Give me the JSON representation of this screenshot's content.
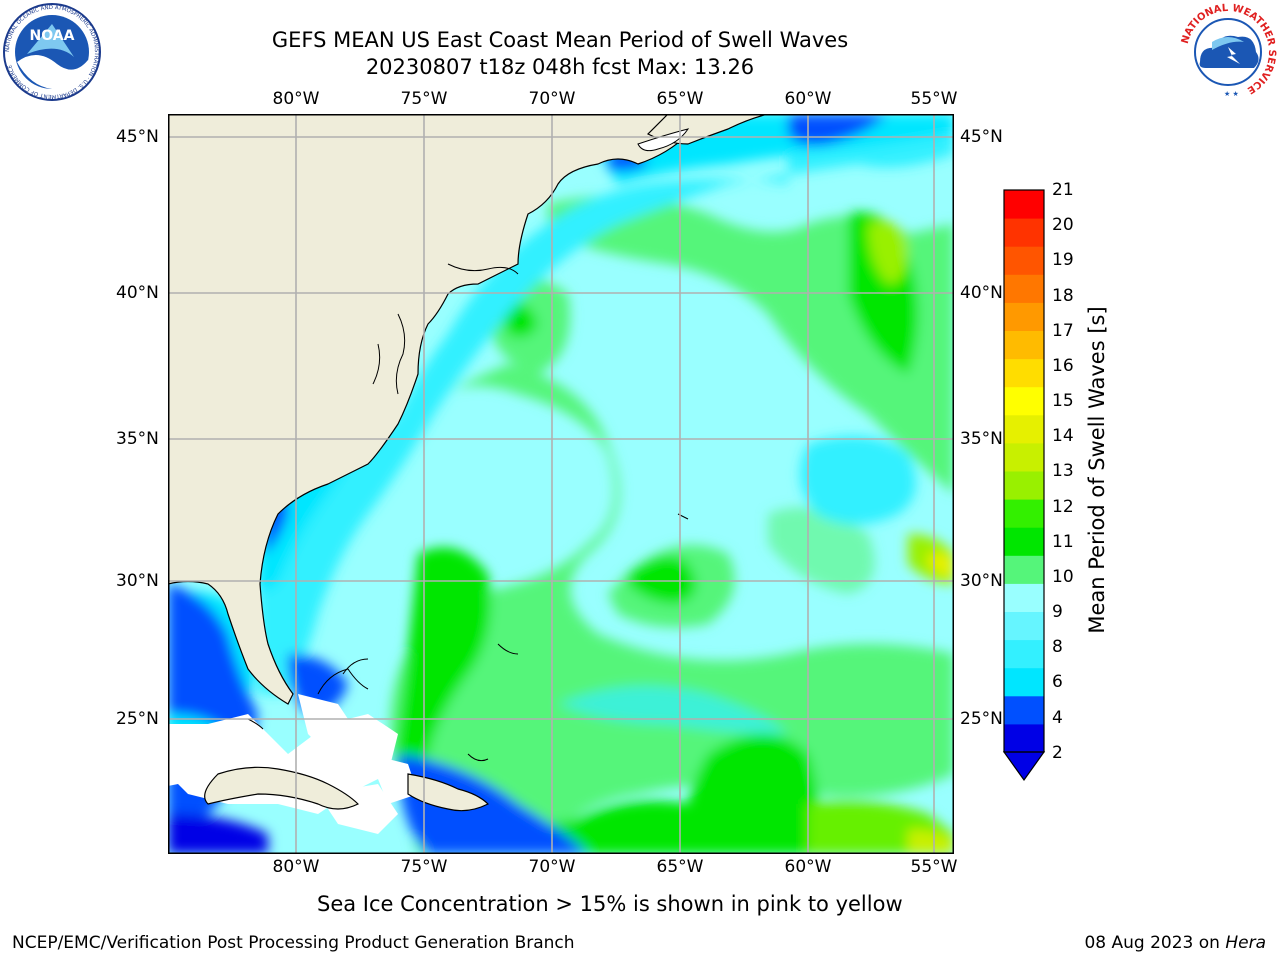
{
  "title": {
    "line1": "GEFS MEAN US East Coast Mean Period of Swell Waves",
    "line2": "20230807 t18z 048h fcst   Max: 13.26"
  },
  "logos": {
    "noaa_text": "NOAA",
    "noaa_ring_text": "NATIONAL OCEANIC AND ATMOSPHERIC ADMINISTRATION · U.S. DEPARTMENT OF COMMERCE",
    "nws_ring_text": "NATIONAL WEATHER SERVICE"
  },
  "map": {
    "lon_ticks": [
      "80°W",
      "75°W",
      "70°W",
      "65°W",
      "60°W",
      "55°W"
    ],
    "lat_ticks": [
      "45°N",
      "40°N",
      "35°N",
      "30°N",
      "25°N"
    ],
    "colors": {
      "land": "#efedda",
      "frame": "#000000",
      "grid": "#b0b0b0",
      "missing": "#ffffff"
    }
  },
  "colorbar": {
    "label": "Mean Period of Swell Waves [s]",
    "ticks": [
      "21",
      "20",
      "19",
      "18",
      "17",
      "16",
      "15",
      "14",
      "13",
      "12",
      "11",
      "10",
      "9",
      "8",
      "6",
      "4",
      "2"
    ],
    "colors": [
      "#0000e6",
      "#0050ff",
      "#00e6ff",
      "#33f0ff",
      "#66f5ff",
      "#99ffff",
      "#55f57a",
      "#00e600",
      "#33f000",
      "#99f000",
      "#c8f000",
      "#e6f000",
      "#ffff00",
      "#ffdd00",
      "#ffbb00",
      "#ff9900",
      "#ff7700",
      "#ff5500",
      "#ff3300",
      "#ff0000"
    ],
    "extend": "min"
  },
  "caption": "Sea Ice Concentration > 15% is shown in pink to yellow",
  "footer": {
    "left": "NCEP/EMC/Verification Post Processing Product Generation Branch",
    "right_date": "08 Aug 2023 on ",
    "right_host": "Hera"
  }
}
